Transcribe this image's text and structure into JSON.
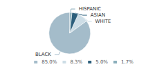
{
  "chart_data": {
    "type": "pie",
    "categories": [
      "BLACK",
      "WHITE",
      "ASIAN",
      "HISPANIC"
    ],
    "values": [
      85.0,
      8.3,
      5.0,
      1.7
    ],
    "value_labels": [
      "85.0%",
      "8.3%",
      "5.0%",
      "1.7%"
    ],
    "colors": [
      "#a4bcca",
      "#cddde6",
      "#2d5f7c",
      "#8aaebb"
    ],
    "legend": "bottom"
  }
}
